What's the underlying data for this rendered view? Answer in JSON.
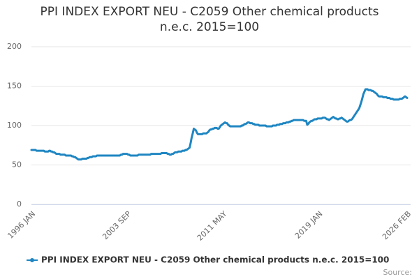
{
  "chart_data": {
    "type": "line",
    "title": "PPI INDEX EXPORT NEU - C2059 Other chemical products n.e.c. 2015=100",
    "source": "Source:",
    "legend": "bottom",
    "grid": true,
    "ylim": [
      0,
      200
    ],
    "yticks": [
      0,
      50,
      100,
      150,
      200
    ],
    "categories": [
      "1996 JAN",
      null,
      null,
      null,
      null,
      null,
      null,
      null,
      null,
      null,
      null,
      null,
      null,
      null,
      null,
      null,
      null,
      null,
      null,
      null,
      null,
      null,
      null,
      null,
      null,
      null,
      null,
      null,
      null,
      null,
      null,
      null,
      null,
      null,
      null,
      null,
      null,
      null,
      null,
      null,
      null,
      null,
      null,
      null,
      null,
      null,
      null,
      null,
      null,
      null,
      null,
      null,
      null,
      null,
      null,
      null,
      null,
      null,
      null,
      null,
      null,
      null,
      null,
      null,
      null,
      null,
      null,
      null,
      null,
      null,
      null,
      null,
      null,
      null,
      null,
      null,
      null,
      null,
      null,
      null,
      null,
      null,
      null,
      null,
      null,
      null,
      null,
      null,
      null,
      null,
      null,
      null,
      "2003 SEP",
      null,
      null,
      null,
      null,
      null,
      null,
      null,
      null,
      null,
      null,
      null,
      null,
      null,
      null,
      null,
      null,
      null,
      null,
      null,
      null,
      null,
      null,
      null,
      null,
      null,
      null,
      null,
      null,
      null,
      null,
      null,
      null,
      null,
      null,
      null,
      null,
      null,
      null,
      null,
      null,
      null,
      null,
      null,
      null,
      null,
      null,
      null,
      null,
      null,
      null,
      null,
      null,
      null,
      null,
      null,
      null,
      null,
      null,
      null,
      null,
      null,
      null,
      null,
      null,
      null,
      null,
      null,
      null,
      null,
      null,
      null,
      null,
      null,
      null,
      null,
      null,
      null,
      null,
      null,
      null,
      null,
      null,
      null,
      null,
      null,
      null,
      null,
      null,
      null,
      null,
      null,
      "2011 MAY",
      null,
      null,
      null,
      null,
      null,
      null,
      null,
      null,
      null,
      null,
      null,
      null,
      null,
      null,
      null,
      null,
      null,
      null,
      null,
      null,
      null,
      null,
      null,
      null,
      null,
      null,
      null,
      null,
      null,
      null,
      null,
      null,
      null,
      null,
      null,
      null,
      null,
      null,
      null,
      null,
      null,
      null,
      null,
      null,
      null,
      null,
      null,
      null,
      null,
      null,
      null,
      null,
      null,
      null,
      null,
      null,
      null,
      null,
      null,
      null,
      null,
      null,
      null,
      null,
      null,
      null,
      null,
      null,
      null,
      null,
      null,
      null,
      null,
      null,
      null,
      null,
      null,
      null,
      null,
      null,
      null,
      null,
      null,
      null,
      null,
      null,
      null,
      null,
      null,
      null,
      null,
      "2019 JAN",
      null,
      null,
      null,
      null,
      null,
      null,
      null,
      null,
      null,
      null,
      null,
      null,
      null,
      null,
      null,
      null,
      null,
      null,
      null,
      null,
      null,
      null,
      null,
      null,
      null,
      null,
      null,
      null,
      null,
      null,
      null,
      null,
      null,
      null,
      null,
      null,
      null,
      null,
      null,
      null,
      null,
      null,
      null,
      null,
      null,
      null,
      null,
      null,
      null,
      null,
      null,
      null,
      null,
      null,
      null,
      null,
      null,
      null,
      null,
      null,
      null,
      null,
      null,
      null,
      null,
      null,
      null,
      null,
      null,
      null,
      null,
      null,
      null,
      null,
      null,
      null,
      null,
      null,
      null,
      null,
      null,
      null,
      null,
      null,
      "2026 FEB"
    ],
    "series": [
      {
        "name": "PPI INDEX EXPORT NEU - C2059 Other chemical products n.e.c. 2015=100",
        "color": "#1f86c2",
        "values": [
          69,
          69,
          69,
          69,
          69,
          68,
          68,
          68,
          68,
          68,
          68,
          68,
          68,
          67,
          67,
          67,
          67,
          68,
          68,
          67,
          67,
          66,
          66,
          65,
          64,
          64,
          64,
          64,
          63,
          63,
          63,
          63,
          63,
          62,
          62,
          62,
          62,
          62,
          62,
          61,
          61,
          60,
          60,
          59,
          58,
          57,
          57,
          57,
          57,
          58,
          58,
          58,
          58,
          58,
          59,
          59,
          60,
          60,
          60,
          61,
          61,
          61,
          61,
          62,
          62,
          62,
          62,
          62,
          62,
          62,
          62,
          62,
          62,
          62,
          62,
          62,
          62,
          62,
          62,
          62,
          62,
          62,
          62,
          62,
          62,
          62,
          63,
          63,
          64,
          64,
          64,
          64,
          64,
          63,
          63,
          62,
          62,
          62,
          62,
          62,
          62,
          62,
          62,
          63,
          63,
          63,
          63,
          63,
          63,
          63,
          63,
          63,
          63,
          63,
          63,
          64,
          64,
          64,
          64,
          64,
          64,
          64,
          64,
          64,
          64,
          65,
          65,
          65,
          65,
          65,
          65,
          64,
          64,
          63,
          63,
          64,
          64,
          65,
          66,
          66,
          66,
          67,
          67,
          67,
          67,
          68,
          68,
          68,
          69,
          69,
          70,
          71,
          72,
          78,
          85,
          90,
          96,
          95,
          94,
          91,
          89,
          89,
          89,
          89,
          89,
          90,
          90,
          90,
          90,
          91,
          92,
          94,
          95,
          95,
          96,
          96,
          97,
          97,
          97,
          96,
          96,
          98,
          100,
          101,
          102,
          103,
          104,
          103,
          103,
          101,
          100,
          99,
          99,
          99,
          99,
          99,
          99,
          99,
          99,
          99,
          99,
          99,
          100,
          100,
          101,
          102,
          102,
          103,
          104,
          104,
          103,
          103,
          103,
          102,
          102,
          101,
          101,
          101,
          101,
          100,
          100,
          100,
          100,
          100,
          100,
          100,
          99,
          99,
          99,
          99,
          99,
          99,
          100,
          100,
          100,
          100,
          101,
          101,
          101,
          102,
          102,
          102,
          103,
          103,
          103,
          104,
          104,
          104,
          105,
          105,
          106,
          106,
          107,
          107,
          107,
          107,
          107,
          107,
          107,
          107,
          107,
          107,
          106,
          106,
          106,
          101,
          102,
          104,
          105,
          106,
          106,
          107,
          108,
          108,
          108,
          109,
          109,
          109,
          109,
          109,
          110,
          110,
          110,
          109,
          108,
          108,
          107,
          108,
          109,
          110,
          111,
          110,
          109,
          109,
          108,
          108,
          109,
          109,
          110,
          109,
          108,
          107,
          106,
          105,
          105,
          106,
          107,
          107,
          108,
          110,
          112,
          114,
          116,
          118,
          120,
          122,
          126,
          130,
          135,
          140,
          143,
          146,
          146,
          146,
          145,
          145,
          145,
          144,
          144,
          143,
          142,
          141,
          140,
          138,
          137,
          137,
          137,
          137,
          136,
          136,
          136,
          136,
          135,
          135,
          135,
          134,
          134,
          134,
          133,
          133,
          133,
          133,
          133,
          133,
          134,
          134,
          134,
          135,
          136,
          137,
          136,
          135
        ]
      }
    ]
  }
}
